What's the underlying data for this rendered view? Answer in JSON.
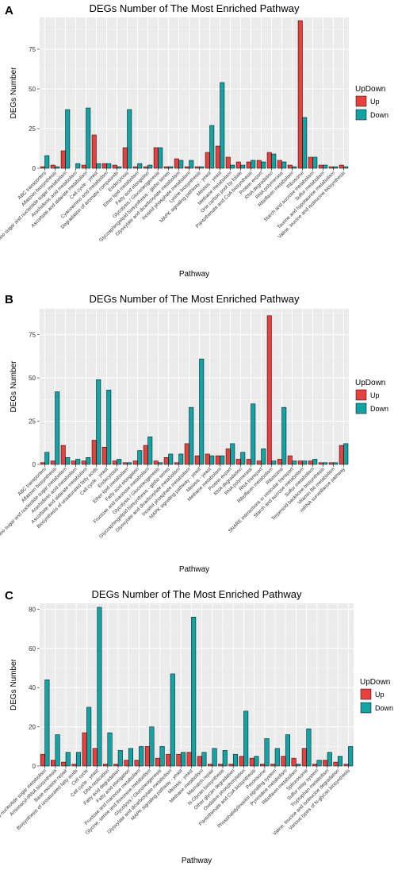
{
  "colors": {
    "up": "#e8403f",
    "down": "#13a3a5",
    "panel_bg": "#ebebeb",
    "grid": "#ffffff"
  },
  "chart_data": [
    {
      "type": "bar",
      "panel": "A",
      "title": "DEGs Number of The Most Enriched Pathway",
      "xlabel": "Pathway",
      "ylabel": "DEGs Number",
      "ylim": [
        0,
        95
      ],
      "yticks": [
        0,
        25,
        50,
        75
      ],
      "legend": {
        "title": "UpDown",
        "placement": "right",
        "entries": [
          "Up",
          "Down"
        ]
      },
      "categories": [
        "ABC transporters",
        "Aflatoxin biosynthesis",
        "Amino sugar and nucleotide sugar metabolism",
        "Arachidonic acid metabolism",
        "Ascorbate and aldarate metabolism",
        "Cell cycle - yeast",
        "Cyanoamino acid metabolism",
        "Degradation of aromatic compounds",
        "Endocytosis",
        "Ether lipid metabolism",
        "Fatty acid elongation",
        "Glycolysis / Gluconeogenesis",
        "Glycosphingolipid biosynthesis - globo series",
        "Glyoxylate and dicarboxylate metabolism",
        "Inositol phosphate metabolism",
        "Lysine biosynthesis",
        "MAPK signaling pathway - yeast",
        "Meiosis - yeast",
        "Methane metabolism",
        "One carbon pool by folate",
        "Pantothenate and CoA biosynthesis",
        "Protein export",
        "RNA degradation",
        "RNA polymerase",
        "Riboflavin metabolism",
        "Ribosome",
        "Starch and sucrose metabolism",
        "Sulfur metabolism",
        "Taurine and hypotaurine metabolism",
        "Valine, leucine and isoleucine biosynthesis"
      ],
      "series": [
        {
          "name": "Up",
          "values": [
            1,
            2,
            11,
            0,
            2,
            21,
            3,
            2,
            13,
            1,
            1,
            13,
            1,
            6,
            1,
            1,
            10,
            14,
            7,
            4,
            4,
            5,
            10,
            5,
            2,
            93,
            7,
            2,
            1,
            2
          ]
        },
        {
          "name": "Down",
          "values": [
            8,
            1,
            37,
            3,
            38,
            3,
            3,
            1,
            37,
            3,
            2,
            13,
            1,
            5,
            5,
            1,
            27,
            54,
            2,
            2,
            5,
            4,
            9,
            4,
            1,
            32,
            7,
            2,
            1,
            1
          ]
        }
      ]
    },
    {
      "type": "bar",
      "panel": "B",
      "title": "DEGs Number of The Most Enriched Pathway",
      "xlabel": "Pathway",
      "ylabel": "DEGs Number",
      "ylim": [
        0,
        90
      ],
      "yticks": [
        0,
        25,
        50,
        75
      ],
      "legend": {
        "title": "UpDown",
        "placement": "right",
        "entries": [
          "Up",
          "Down"
        ]
      },
      "categories": [
        "ABC transporters",
        "Aflatoxin biosynthesis",
        "Amino sugar and nucleotide sugar metabolism",
        "Arachidonic acid metabolism",
        "Ascorbate and aldarate metabolism",
        "Biosynthesis of unsaturated fatty acids",
        "Cell cycle - yeast",
        "Endocytosis",
        "Ether lipid metabolism",
        "Fatty acid elongation",
        "Fructose and mannose metabolism",
        "Glycolysis / Gluconeogenesis",
        "Glycosphingolipid biosynthesis - globo series",
        "Glyoxylate and dicarboxylate metabolism",
        "Inositol phosphate metabolism",
        "MAPK signaling pathway - yeast",
        "Meiosis - yeast",
        "Methane metabolism",
        "Protein export",
        "RNA degradation",
        "RNA polymerase",
        "RNA transport",
        "Riboflavin metabolism",
        "Ribosome",
        "SNARE interactions in vesicular transport",
        "Starch and sucrose metabolism",
        "Sulfur metabolism",
        "Terpenoid backbone biosynthesis",
        "Vitamin B6 metabolism",
        "mRNA surveillance pathway"
      ],
      "series": [
        {
          "name": "Up",
          "values": [
            1,
            2,
            11,
            2,
            2,
            14,
            10,
            2,
            1,
            2,
            11,
            2,
            4,
            1,
            12,
            5,
            6,
            5,
            9,
            3,
            3,
            2,
            86,
            3,
            5,
            2,
            2,
            1,
            1,
            11
          ]
        },
        {
          "name": "Down",
          "values": [
            7,
            42,
            4,
            3,
            4,
            49,
            43,
            3,
            1,
            8,
            16,
            1,
            6,
            6,
            33,
            61,
            5,
            5,
            12,
            7,
            35,
            9,
            2,
            33,
            2,
            2,
            3,
            1,
            1,
            12
          ]
        }
      ]
    },
    {
      "type": "bar",
      "panel": "C",
      "title": "DEGs Number of The Most Enriched Pathway",
      "xlabel": "Pathway",
      "ylabel": "DEGs Number",
      "ylim": [
        0,
        83
      ],
      "yticks": [
        0,
        20,
        40,
        60,
        80
      ],
      "legend": {
        "title": "UpDown",
        "placement": "right",
        "entries": [
          "Up",
          "Down"
        ]
      },
      "categories": [
        "Amino sugar and nucleotide sugar metabolism",
        "Aminoacyl-tRNA biosynthesis",
        "Base excision repair",
        "Biosynthesis of unsaturated fatty acids",
        "Cell cycle",
        "Cell cycle - yeast",
        "DNA replication",
        "Fatty acid degradation",
        "Fatty acid elongation",
        "Fructose and mannose metabolism",
        "Glycine, serine and threonine metabolism",
        "Glycolysis / Gluconeogenesis",
        "Glyoxylate and dicarboxylate metabolism",
        "MAPK signaling pathway - yeast",
        "Meiosis - yeast",
        "Methane metabolism",
        "Mismatch repair",
        "N-Glycan biosynthesis",
        "Other glycan degradation",
        "Oxidative phosphorylation",
        "Pantothenate and CoA biosynthesis",
        "Peroxisome",
        "Phosphatidylinositol signaling system",
        "Pyrimidine metabolism",
        "Riboflavin metabolism",
        "Spliceosome",
        "Sulfur relay system",
        "Tryptophan metabolism",
        "Valine, leucine and isoleucine degradation",
        "Various types of N-glycan biosynthesis"
      ],
      "series": [
        {
          "name": "Up",
          "values": [
            6,
            3,
            2,
            1,
            17,
            9,
            1,
            1,
            3,
            3,
            10,
            4,
            6,
            6,
            7,
            5,
            1,
            1,
            1,
            5,
            4,
            1,
            1,
            5,
            4,
            9,
            1,
            3,
            2,
            1
          ]
        },
        {
          "name": "Down",
          "values": [
            44,
            16,
            7,
            7,
            30,
            81,
            17,
            8,
            9,
            10,
            20,
            10,
            47,
            7,
            76,
            7,
            9,
            8,
            6,
            28,
            5,
            14,
            9,
            16,
            1,
            19,
            3,
            7,
            5,
            10
          ]
        }
      ]
    }
  ]
}
